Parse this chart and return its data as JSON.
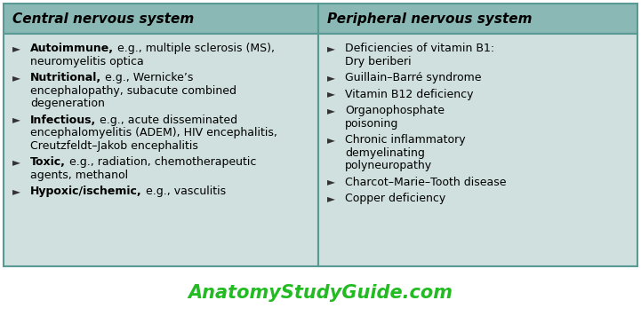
{
  "title": "AnatomyStudyGuide.com",
  "title_color": "#22bb22",
  "header_bg": "#8ab8b5",
  "body_bg": "#cfe0de",
  "border_color": "#5a9a95",
  "col1_header": "Central nervous system",
  "col2_header": "Peripheral nervous system",
  "col1_items": [
    {
      "bold": "Autoimmune,",
      "rest": " e.g., multiple sclerosis (MS),\nneuromyelitis optica",
      "lines": 2
    },
    {
      "bold": "Nutritional,",
      "rest": " e.g., Wernicke’s\nencephalopathy, subacute combined\ndegeneration",
      "lines": 3
    },
    {
      "bold": "Infectious,",
      "rest": " e.g., acute disseminated\nencephalomyelitis (ADEM), HIV encephalitis,\nCreutzfeldt–Jakob encephalitis",
      "lines": 3
    },
    {
      "bold": "Toxic,",
      "rest": " e.g., radiation, chemotherapeutic\nagents, methanol",
      "lines": 2
    },
    {
      "bold": "Hypoxic/ischemic,",
      "rest": " e.g., vasculitis",
      "lines": 1
    }
  ],
  "col2_items": [
    {
      "text": "Deficiencies of vitamin B1:\nDry beriberi",
      "lines": 2
    },
    {
      "text": "Guillain–Barré syndrome",
      "lines": 1
    },
    {
      "text": "Vitamin B12 deficiency",
      "lines": 1
    },
    {
      "text": "Organophosphate\npoisoning",
      "lines": 2
    },
    {
      "text": "Chronic inflammatory\ndemyelinating\npolyneuropathy",
      "lines": 3
    },
    {
      "text": "Charcot–Marie–Tooth disease",
      "lines": 1
    },
    {
      "text": "Copper deficiency",
      "lines": 1
    }
  ],
  "figsize": [
    7.21,
    3.74
  ],
  "dpi": 100
}
